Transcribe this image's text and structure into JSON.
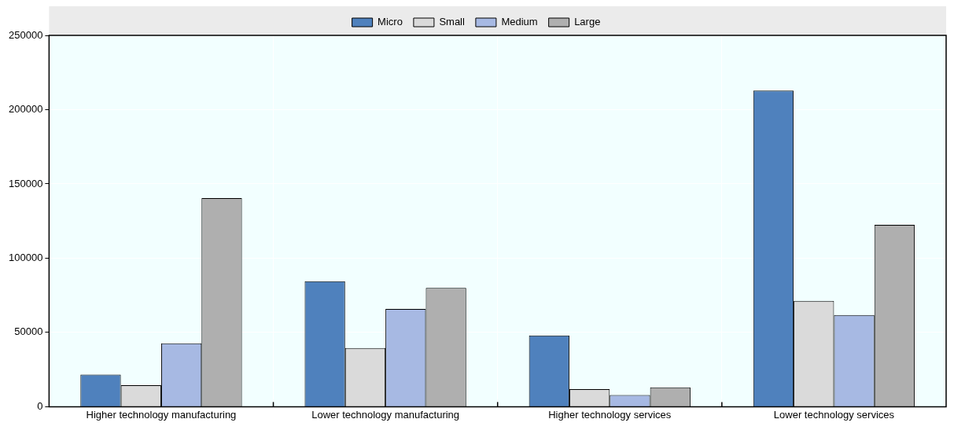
{
  "chart_data": {
    "type": "bar",
    "categories": [
      "Higher technology manufacturing",
      "Lower technology manufacturing",
      "Higher technology services",
      "Lower technology services"
    ],
    "series": [
      {
        "name": "Micro",
        "color": "#4f81bd",
        "values": [
          21600,
          84500,
          48000,
          212800
        ]
      },
      {
        "name": "Small",
        "color": "#dadada",
        "values": [
          14500,
          39500,
          11900,
          71200
        ]
      },
      {
        "name": "Medium",
        "color": "#a7b9e3",
        "values": [
          42700,
          65900,
          7900,
          61700
        ]
      },
      {
        "name": "Large",
        "color": "#afafaf",
        "values": [
          140500,
          80000,
          13100,
          122500
        ]
      }
    ],
    "ylim": [
      0,
      250000
    ],
    "yticks": [
      0,
      50000,
      100000,
      150000,
      200000,
      250000
    ],
    "grid": "y",
    "legend": "top"
  }
}
